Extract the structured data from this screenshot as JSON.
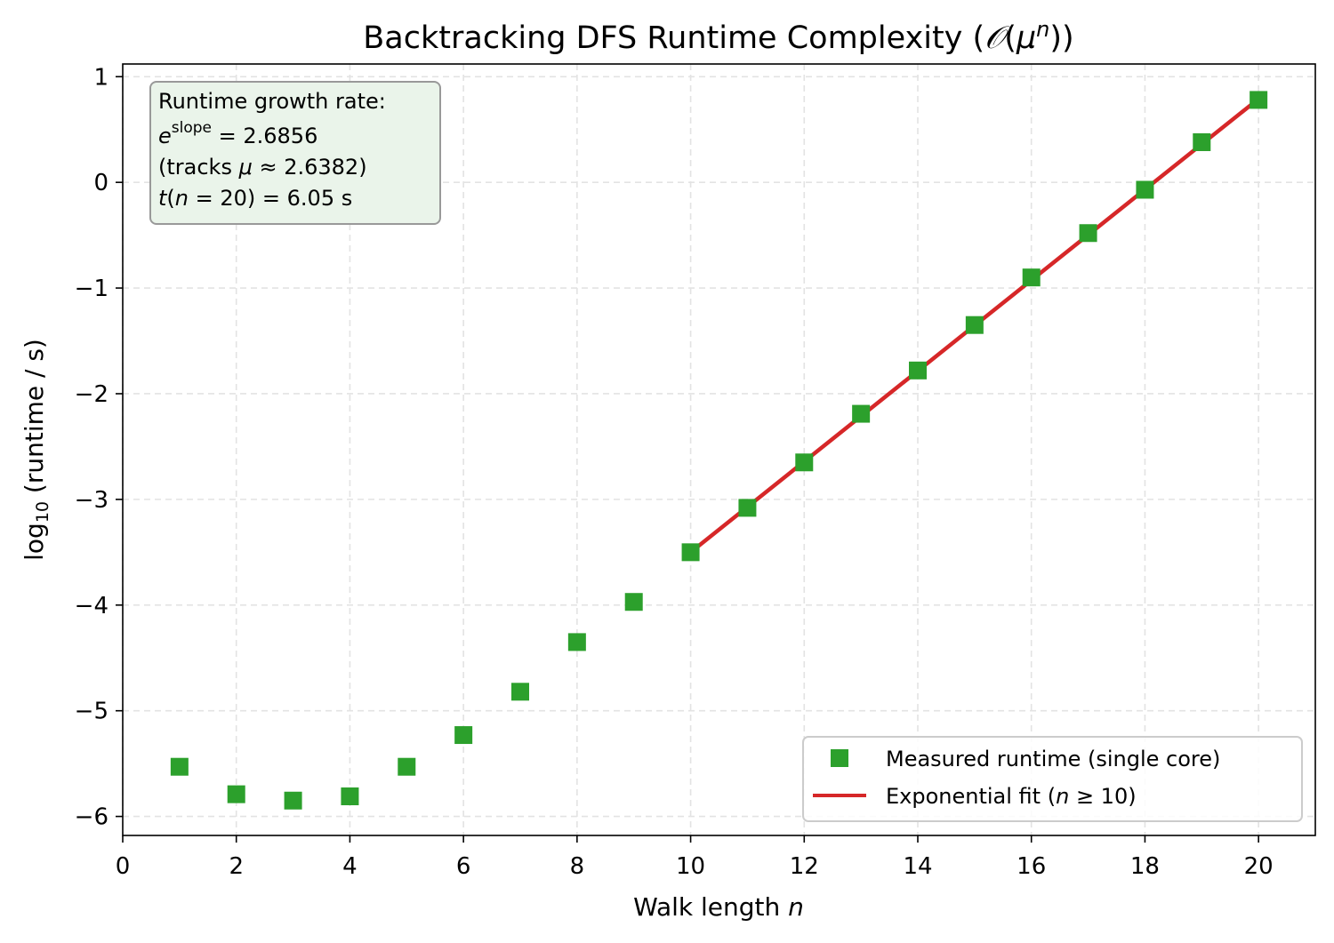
{
  "chart_data": {
    "type": "scatter",
    "title": "Backtracking DFS Runtime Complexity",
    "title_math": {
      "open": " (",
      "O": "𝒪",
      "mu": "μ",
      "n": "n",
      "close": "))"
    },
    "xlabel": "Walk length",
    "xlabel_var": "n",
    "ylabel_prefix": "log",
    "ylabel_sub": "10",
    "ylabel_suffix": " (runtime / s)",
    "xlim": [
      0,
      21
    ],
    "ylim": [
      -6.18,
      1.12
    ],
    "xticks": [
      0,
      2,
      4,
      6,
      8,
      10,
      12,
      14,
      16,
      18,
      20
    ],
    "yticks": [
      1,
      0,
      -1,
      -2,
      -3,
      -4,
      -5,
      -6
    ],
    "grid": true,
    "legend_position": "bottom-right",
    "colors": {
      "measured": "#2ca02c",
      "fit": "#d62728"
    },
    "series": [
      {
        "name": "Measured runtime (single core)",
        "kind": "scatter",
        "marker": "square",
        "x": [
          1,
          2,
          3,
          4,
          5,
          6,
          7,
          8,
          9,
          10,
          11,
          12,
          13,
          14,
          15,
          16,
          17,
          18,
          19,
          20
        ],
        "y": [
          -5.53,
          -5.79,
          -5.85,
          -5.81,
          -5.53,
          -5.23,
          -4.82,
          -4.35,
          -3.97,
          -3.5,
          -3.08,
          -2.65,
          -2.19,
          -1.78,
          -1.35,
          -0.9,
          -0.48,
          -0.07,
          0.38,
          0.78
        ]
      },
      {
        "name": "Exponential fit",
        "name_math": {
          "open": " (",
          "n": "n",
          "rel": " ≥ 10)"
        },
        "kind": "line",
        "x": [
          10,
          20
        ],
        "y": [
          -3.5,
          0.79
        ]
      }
    ],
    "annotation": {
      "line1": "Runtime growth rate:",
      "line2": {
        "e": "e",
        "sup": "slope",
        "rest": " = 2.6856"
      },
      "line3": {
        "pre": "(tracks ",
        "mu": "μ",
        "rest": " ≈ 2.6382)"
      },
      "line4": {
        "t": "t",
        "open": "(",
        "n": "n",
        "rest": " = 20) = 6.05 s"
      }
    }
  }
}
